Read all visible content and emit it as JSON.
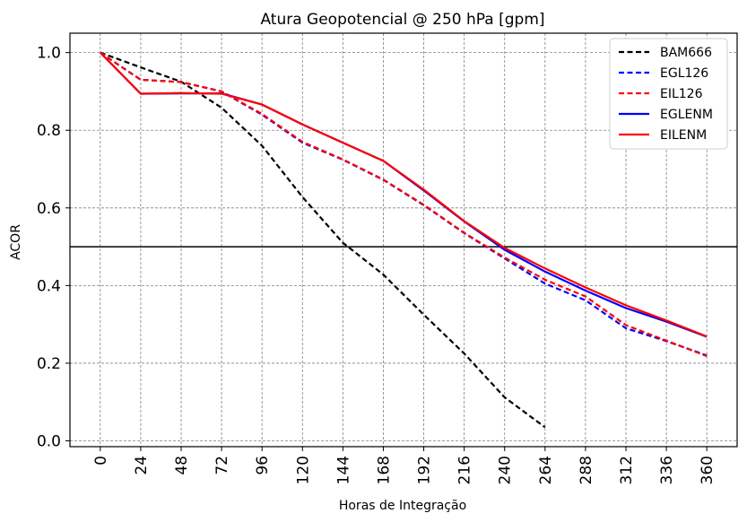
{
  "chart_data": {
    "type": "line",
    "title": "Atura Geopotencial @ 250 hPa [gpm]",
    "xlabel": "Horas de Integração",
    "ylabel": "ACOR",
    "x_ticks": [
      0,
      24,
      48,
      72,
      96,
      120,
      144,
      168,
      192,
      216,
      240,
      264,
      288,
      312,
      336,
      360
    ],
    "y_ticks": [
      "0.0",
      "0.2",
      "0.4",
      "0.6",
      "0.8",
      "1.0"
    ],
    "xlim": [
      -18,
      378
    ],
    "ylim": [
      -0.015,
      1.05
    ],
    "grid": true,
    "reference_line": 0.5,
    "legend_position": "top-right",
    "series": [
      {
        "name": "BAM666",
        "color": "#000000",
        "style": "dashed",
        "x": [
          0,
          24,
          48,
          72,
          96,
          120,
          144,
          168,
          192,
          216,
          240,
          264
        ],
        "y": [
          1.0,
          0.962,
          0.925,
          0.858,
          0.76,
          0.628,
          0.51,
          0.428,
          0.325,
          0.225,
          0.112,
          0.035
        ]
      },
      {
        "name": "EGL126",
        "color": "#0000ff",
        "style": "dashed",
        "x": [
          0,
          24,
          48,
          72,
          96,
          120,
          144,
          168,
          192,
          216,
          240,
          264,
          288,
          312,
          336,
          360
        ],
        "y": [
          1.0,
          0.93,
          0.924,
          0.9,
          0.84,
          0.768,
          0.724,
          0.672,
          0.607,
          0.535,
          0.47,
          0.405,
          0.362,
          0.29,
          0.257,
          0.22
        ]
      },
      {
        "name": "EIL126",
        "color": "#ff0000",
        "style": "dashed",
        "x": [
          0,
          24,
          48,
          72,
          96,
          120,
          144,
          168,
          192,
          216,
          240,
          264,
          288,
          312,
          336,
          360
        ],
        "y": [
          1.0,
          0.93,
          0.924,
          0.9,
          0.842,
          0.77,
          0.725,
          0.673,
          0.608,
          0.536,
          0.472,
          0.415,
          0.372,
          0.298,
          0.258,
          0.218
        ]
      },
      {
        "name": "EGLENM",
        "color": "#0000ff",
        "style": "solid",
        "x": [
          0,
          24,
          48,
          72,
          96,
          120,
          144,
          168,
          192,
          216,
          240,
          264,
          288,
          312,
          336,
          360
        ],
        "y": [
          1.0,
          0.894,
          0.895,
          0.895,
          0.866,
          0.815,
          0.768,
          0.721,
          0.645,
          0.565,
          0.492,
          0.436,
          0.387,
          0.342,
          0.307,
          0.268
        ]
      },
      {
        "name": "EILENM",
        "color": "#ff0000",
        "style": "solid",
        "x": [
          0,
          24,
          48,
          72,
          96,
          120,
          144,
          168,
          192,
          216,
          240,
          264,
          288,
          312,
          336,
          360
        ],
        "y": [
          1.0,
          0.894,
          0.896,
          0.894,
          0.866,
          0.815,
          0.768,
          0.721,
          0.647,
          0.566,
          0.497,
          0.444,
          0.395,
          0.349,
          0.31,
          0.269
        ]
      }
    ]
  }
}
